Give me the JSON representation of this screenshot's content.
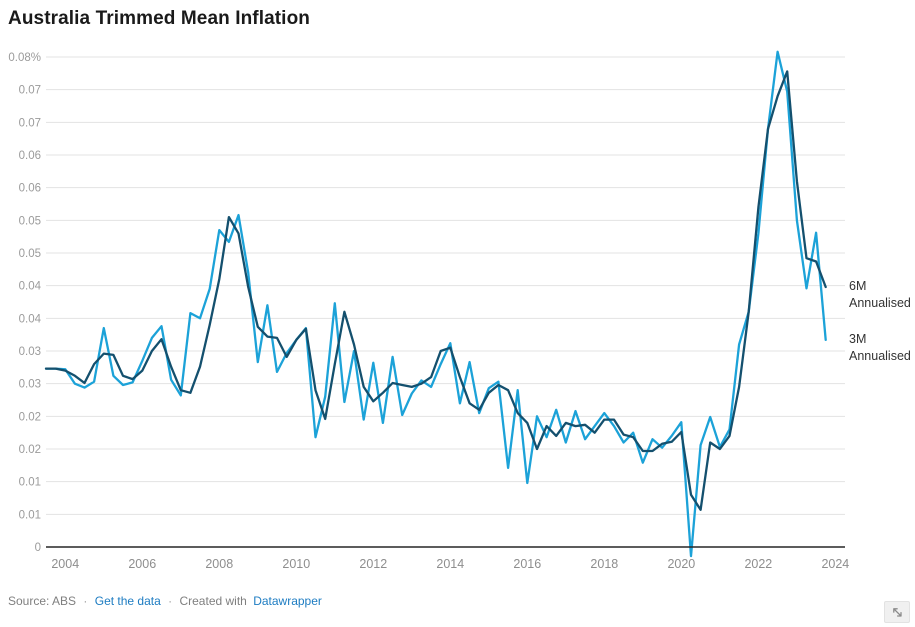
{
  "header": {
    "title": "Australia Trimmed Mean Inflation"
  },
  "footer": {
    "source_text": "Source: ABS",
    "sep": "·",
    "get_data": "Get the data",
    "created_with": "Created with",
    "datawrapper": "Datawrapper",
    "link_color": "#1d7cc2",
    "text_color": "#7f7f7f"
  },
  "icons": {
    "resize": "resize-diagonal-arrow"
  },
  "chart_data": {
    "type": "line",
    "title": "Australia Trimmed Mean Inflation",
    "xlabel": "",
    "ylabel": "",
    "x_unit": "quarter",
    "x_start": 2003.5,
    "x_step": 0.25,
    "xlim": [
      2003.5,
      2024.25
    ],
    "ylim": [
      0,
      0.075
    ],
    "grid": true,
    "grid_color": "#e3e3e3",
    "baseline_color": "#262626",
    "tick_label_color": "#9b9b9b",
    "x_tick_label_color": "#8e8e8e",
    "series_label_color": "#333333",
    "legend_position": "right-end-of-line",
    "x_ticks": [
      2004,
      2006,
      2008,
      2010,
      2012,
      2014,
      2016,
      2018,
      2020,
      2022,
      2024
    ],
    "x_tick_labels": [
      "2004",
      "2006",
      "2008",
      "2010",
      "2012",
      "2014",
      "2016",
      "2018",
      "2020",
      "2022",
      "2024"
    ],
    "y_ticks": [
      {
        "value": 0.0,
        "label": "0"
      },
      {
        "value": 0.005,
        "label": "0.01"
      },
      {
        "value": 0.01,
        "label": "0.01"
      },
      {
        "value": 0.015,
        "label": "0.02"
      },
      {
        "value": 0.02,
        "label": "0.02"
      },
      {
        "value": 0.025,
        "label": "0.03"
      },
      {
        "value": 0.03,
        "label": "0.03"
      },
      {
        "value": 0.035,
        "label": "0.04"
      },
      {
        "value": 0.04,
        "label": "0.04"
      },
      {
        "value": 0.045,
        "label": "0.05"
      },
      {
        "value": 0.05,
        "label": "0.05"
      },
      {
        "value": 0.055,
        "label": "0.06"
      },
      {
        "value": 0.06,
        "label": "0.06"
      },
      {
        "value": 0.065,
        "label": "0.07"
      },
      {
        "value": 0.07,
        "label": "0.07"
      },
      {
        "value": 0.075,
        "label": "0.08%"
      }
    ],
    "series": [
      {
        "name": "3M Annualised",
        "label_lines": [
          "3M",
          "Annualised"
        ],
        "color": "#1CA2D8",
        "values": [
          0.0273,
          0.0273,
          0.0272,
          0.025,
          0.0244,
          0.0253,
          0.0335,
          0.0262,
          0.0248,
          0.0252,
          0.0285,
          0.032,
          0.0338,
          0.0256,
          0.0232,
          0.0358,
          0.035,
          0.0395,
          0.0485,
          0.0467,
          0.0508,
          0.042,
          0.0283,
          0.037,
          0.0268,
          0.0297,
          0.0317,
          0.0335,
          0.0168,
          0.023,
          0.0373,
          0.0222,
          0.03,
          0.0195,
          0.0282,
          0.019,
          0.0291,
          0.0202,
          0.0235,
          0.0255,
          0.0245,
          0.028,
          0.0312,
          0.022,
          0.0283,
          0.0205,
          0.0243,
          0.0253,
          0.0121,
          0.024,
          0.0098,
          0.02,
          0.0168,
          0.021,
          0.016,
          0.0208,
          0.0165,
          0.0185,
          0.0205,
          0.0185,
          0.016,
          0.0175,
          0.0129,
          0.0165,
          0.0152,
          0.017,
          0.0191,
          -0.0014,
          0.0156,
          0.0199,
          0.0153,
          0.018,
          0.031,
          0.036,
          0.048,
          0.064,
          0.0758,
          0.0697,
          0.05,
          0.0396,
          0.0481,
          0.0317
        ]
      },
      {
        "name": "6M Annualised",
        "label_lines": [
          "6M",
          "Annualised"
        ],
        "color": "#14506E",
        "values": [
          0.0273,
          0.0273,
          0.027,
          0.0262,
          0.0251,
          0.028,
          0.0296,
          0.0294,
          0.0262,
          0.0257,
          0.027,
          0.03,
          0.0318,
          0.0276,
          0.024,
          0.0236,
          0.0276,
          0.034,
          0.041,
          0.0505,
          0.048,
          0.0398,
          0.0337,
          0.0322,
          0.032,
          0.0291,
          0.0317,
          0.0334,
          0.024,
          0.0196,
          0.028,
          0.036,
          0.031,
          0.0245,
          0.0223,
          0.0236,
          0.0251,
          0.0248,
          0.0245,
          0.025,
          0.026,
          0.03,
          0.0305,
          0.026,
          0.022,
          0.021,
          0.0236,
          0.0248,
          0.024,
          0.0205,
          0.019,
          0.015,
          0.0185,
          0.017,
          0.019,
          0.0185,
          0.0187,
          0.0175,
          0.0195,
          0.0195,
          0.0172,
          0.0168,
          0.0147,
          0.0147,
          0.0158,
          0.0161,
          0.0176,
          0.008,
          0.0057,
          0.016,
          0.015,
          0.017,
          0.0245,
          0.036,
          0.052,
          0.064,
          0.069,
          0.0728,
          0.056,
          0.0442,
          0.0437,
          0.0398
        ]
      }
    ]
  }
}
